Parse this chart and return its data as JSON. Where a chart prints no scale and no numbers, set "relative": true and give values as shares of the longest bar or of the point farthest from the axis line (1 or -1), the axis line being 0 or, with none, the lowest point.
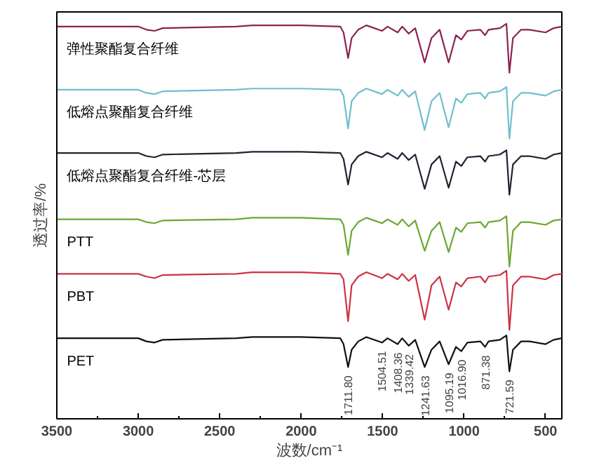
{
  "chart_data": {
    "type": "line",
    "relative": true,
    "xlabel": "波数/cm⁻¹",
    "ylabel": "透过率/%",
    "x": [
      3500,
      3000,
      2950,
      2900,
      2850,
      2400,
      2300,
      2000,
      1760,
      1740,
      1712,
      1690,
      1650,
      1600,
      1504,
      1470,
      1408,
      1380,
      1340,
      1300,
      1242,
      1200,
      1150,
      1095,
      1050,
      1017,
      980,
      900,
      871,
      850,
      780,
      740,
      722,
      700,
      650,
      600,
      500,
      450,
      400
    ],
    "xlim": [
      3500,
      400
    ],
    "xticks": [
      3500,
      3000,
      2500,
      2000,
      1500,
      1000,
      500
    ],
    "grid": false,
    "legend": false,
    "marker": "none",
    "line_style": "solid",
    "series": [
      {
        "name": "弹性聚酯复合纤维",
        "color": "#8b2252",
        "values": [
          0.993,
          0.993,
          0.985,
          0.982,
          0.989,
          0.993,
          0.996,
          0.996,
          0.993,
          0.978,
          0.913,
          0.964,
          0.985,
          0.996,
          0.982,
          0.993,
          0.978,
          0.993,
          0.975,
          0.989,
          0.902,
          0.964,
          0.985,
          0.902,
          0.971,
          0.96,
          0.982,
          0.985,
          0.971,
          0.985,
          0.989,
          1.0,
          0.876,
          0.964,
          0.985,
          0.985,
          0.978,
          0.989,
          0.993
        ]
      },
      {
        "name": "低熔点聚酯复合纤维",
        "color": "#6fbfcf",
        "values": [
          0.833,
          0.833,
          0.825,
          0.822,
          0.829,
          0.833,
          0.836,
          0.836,
          0.833,
          0.818,
          0.735,
          0.804,
          0.825,
          0.836,
          0.822,
          0.833,
          0.818,
          0.833,
          0.815,
          0.829,
          0.731,
          0.804,
          0.825,
          0.738,
          0.811,
          0.8,
          0.822,
          0.825,
          0.811,
          0.825,
          0.829,
          0.84,
          0.709,
          0.804,
          0.825,
          0.825,
          0.818,
          0.829,
          0.833
        ]
      },
      {
        "name": "低熔点聚酯复合纤维-芯层",
        "color": "#222233",
        "values": [
          0.673,
          0.673,
          0.665,
          0.662,
          0.669,
          0.673,
          0.676,
          0.676,
          0.673,
          0.658,
          0.593,
          0.644,
          0.665,
          0.676,
          0.662,
          0.673,
          0.658,
          0.673,
          0.655,
          0.669,
          0.582,
          0.644,
          0.665,
          0.585,
          0.651,
          0.64,
          0.662,
          0.665,
          0.651,
          0.665,
          0.669,
          0.68,
          0.567,
          0.644,
          0.665,
          0.665,
          0.658,
          0.669,
          0.673
        ]
      },
      {
        "name": "PTT",
        "color": "#6aa832",
        "values": [
          0.505,
          0.505,
          0.498,
          0.495,
          0.502,
          0.505,
          0.509,
          0.509,
          0.505,
          0.491,
          0.415,
          0.476,
          0.498,
          0.509,
          0.495,
          0.505,
          0.491,
          0.505,
          0.487,
          0.502,
          0.425,
          0.476,
          0.498,
          0.422,
          0.484,
          0.473,
          0.495,
          0.498,
          0.484,
          0.498,
          0.502,
          0.513,
          0.385,
          0.476,
          0.498,
          0.498,
          0.491,
          0.502,
          0.505
        ]
      },
      {
        "name": "PBT",
        "color": "#cc3344",
        "values": [
          0.367,
          0.367,
          0.36,
          0.356,
          0.364,
          0.367,
          0.371,
          0.371,
          0.367,
          0.353,
          0.247,
          0.338,
          0.36,
          0.371,
          0.356,
          0.367,
          0.353,
          0.367,
          0.349,
          0.364,
          0.251,
          0.338,
          0.36,
          0.276,
          0.345,
          0.335,
          0.356,
          0.36,
          0.345,
          0.36,
          0.364,
          0.375,
          0.225,
          0.338,
          0.36,
          0.36,
          0.353,
          0.364,
          0.367
        ]
      },
      {
        "name": "PET",
        "color": "#111111",
        "values": [
          0.204,
          0.204,
          0.196,
          0.193,
          0.2,
          0.204,
          0.207,
          0.207,
          0.204,
          0.189,
          0.131,
          0.175,
          0.196,
          0.207,
          0.193,
          0.204,
          0.189,
          0.204,
          0.185,
          0.2,
          0.131,
          0.175,
          0.196,
          0.138,
          0.182,
          0.171,
          0.193,
          0.196,
          0.182,
          0.196,
          0.2,
          0.211,
          0.12,
          0.175,
          0.196,
          0.196,
          0.189,
          0.2,
          0.204
        ]
      }
    ],
    "annotations": [
      {
        "text": "1711.80",
        "x": 1711.8,
        "y": 0.131
      },
      {
        "text": "1504.51",
        "x": 1504.51,
        "y": 0.193
      },
      {
        "text": "1408.36",
        "x": 1408.36,
        "y": 0.189
      },
      {
        "text": "1339.42",
        "x": 1339.42,
        "y": 0.185
      },
      {
        "text": "1241.63",
        "x": 1241.63,
        "y": 0.131
      },
      {
        "text": "1095.19",
        "x": 1095.19,
        "y": 0.138
      },
      {
        "text": "1016.90",
        "x": 1016.9,
        "y": 0.171
      },
      {
        "text": "871.38",
        "x": 871.38,
        "y": 0.182
      },
      {
        "text": "721.59",
        "x": 721.59,
        "y": 0.12
      }
    ]
  }
}
